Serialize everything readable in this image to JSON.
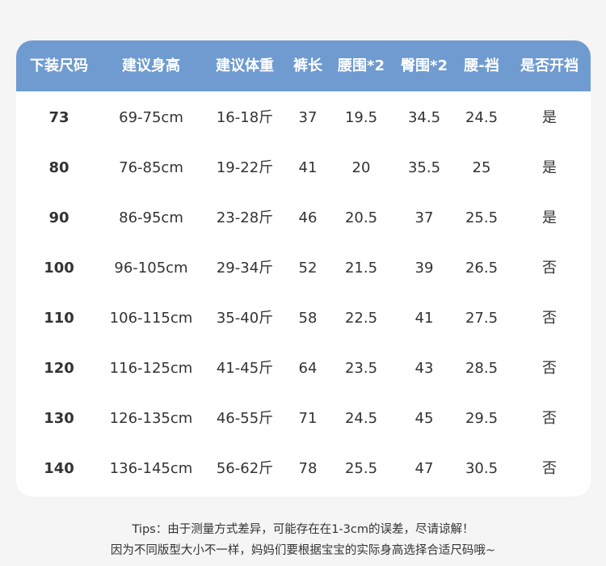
{
  "colors": {
    "header_bg": "#6f9bd0",
    "page_bg": "#f5f5f5",
    "text": "#333333"
  },
  "table": {
    "headers": [
      "下装尺码",
      "建议身高",
      "建议体重",
      "裤长",
      "腰围*2",
      "臀围*2",
      "腰-裆",
      "是否开裆"
    ],
    "rows": [
      [
        "73",
        "69-75cm",
        "16-18斤",
        "37",
        "19.5",
        "34.5",
        "24.5",
        "是"
      ],
      [
        "80",
        "76-85cm",
        "19-22斤",
        "41",
        "20",
        "35.5",
        "25",
        "是"
      ],
      [
        "90",
        "86-95cm",
        "23-28斤",
        "46",
        "20.5",
        "37",
        "25.5",
        "是"
      ],
      [
        "100",
        "96-105cm",
        "29-34斤",
        "52",
        "21.5",
        "39",
        "26.5",
        "否"
      ],
      [
        "110",
        "106-115cm",
        "35-40斤",
        "58",
        "22.5",
        "41",
        "27.5",
        "否"
      ],
      [
        "120",
        "116-125cm",
        "41-45斤",
        "64",
        "23.5",
        "43",
        "28.5",
        "否"
      ],
      [
        "130",
        "126-135cm",
        "46-55斤",
        "71",
        "24.5",
        "45",
        "29.5",
        "否"
      ],
      [
        "140",
        "136-145cm",
        "56-62斤",
        "78",
        "25.5",
        "47",
        "30.5",
        "否"
      ]
    ]
  },
  "tips": {
    "line1": "Tips：由于测量方式差异，可能存在在1-3cm的误差，尽请谅解！",
    "line2": "因为不同版型大小不一样，妈妈们要根据宝宝的实际身高选择合适尺码哦~"
  }
}
